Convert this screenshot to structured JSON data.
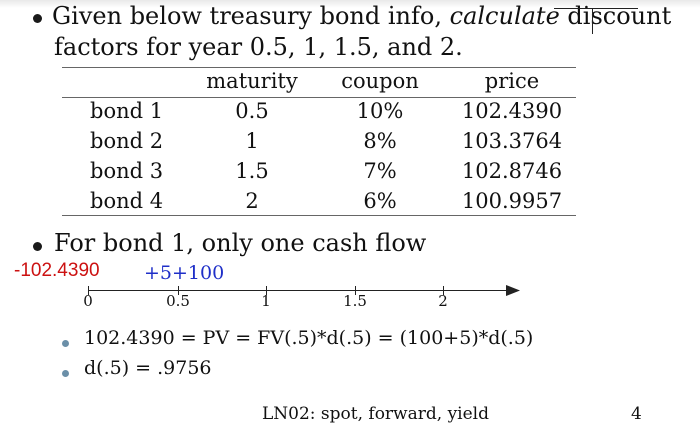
{
  "bullet1": {
    "line1_prefix": "Given below treasury bond info,",
    "line1_italic": "calculate",
    "line1_suffix": "discount",
    "line2": "factors for year 0.5, 1, 1.5, and 2."
  },
  "table": {
    "headers": [
      "",
      "maturity",
      "coupon",
      "price"
    ],
    "rows": [
      [
        "bond 1",
        "0.5",
        "10%",
        "102.4390"
      ],
      [
        "bond 2",
        "1",
        "8%",
        "103.3764"
      ],
      [
        "bond 3",
        "1.5",
        "7%",
        "102.8746"
      ],
      [
        "bond 4",
        "2",
        "6%",
        "100.9957"
      ]
    ]
  },
  "bullet2": "For bond 1, only one cash flow",
  "timeline": {
    "outflow_label": "-102.4390",
    "outflow_color": "#cc1111",
    "inflow_label": "+5+100",
    "inflow_color": "#1f2fc8",
    "ticks": [
      "0",
      "0.5",
      "1",
      "1.5",
      "2"
    ]
  },
  "sub_bullets": [
    "102.4390 = PV = FV(.5)*d(.5) = (100+5)*d(.5)",
    "d(.5) = .9756"
  ],
  "footer": {
    "title": "LN02: spot, forward, yield",
    "page_number": "4"
  }
}
